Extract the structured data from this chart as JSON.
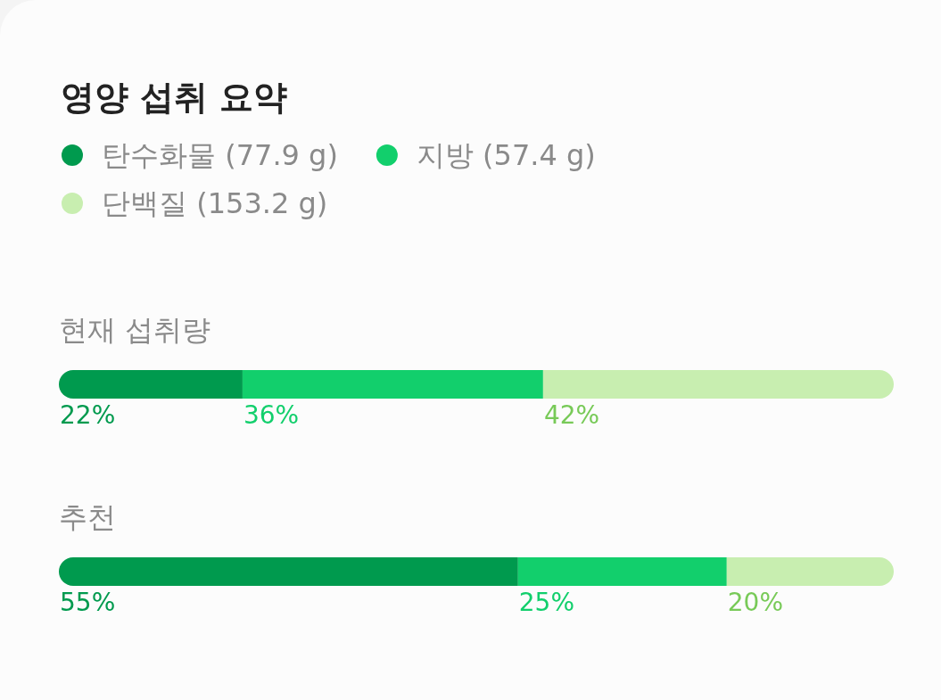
{
  "chart_data": {
    "type": "bar",
    "orientation": "horizontal",
    "stacked": true,
    "title": "영양 섭취 요약",
    "categories": [
      "현재 섭취량",
      "추천"
    ],
    "tick_labels": "y",
    "legend": "top left",
    "series": [
      {
        "name": "탄수화물 (77.9 g)",
        "color": "#009a4e",
        "values": [
          22,
          55
        ],
        "value_labels": [
          "22%",
          "55%"
        ]
      },
      {
        "name": "지방 (57.4 g)",
        "color": "#12cf6c",
        "values": [
          36,
          25
        ],
        "value_labels": [
          "36%",
          "25%"
        ]
      },
      {
        "name": "단백질 (153.2 g)",
        "color": "#c8eeb0",
        "values": [
          42,
          20
        ],
        "value_labels": [
          "42%",
          "20%"
        ]
      }
    ]
  }
}
